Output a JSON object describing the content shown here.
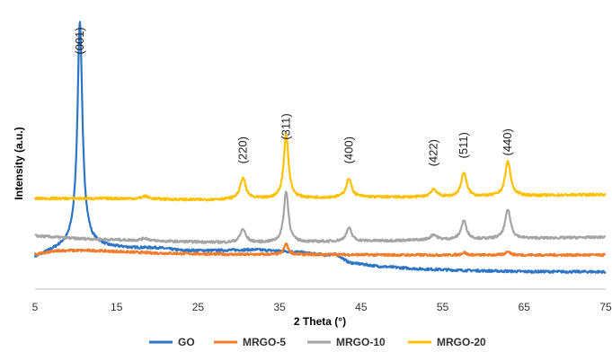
{
  "chart_data": {
    "type": "line",
    "title": "",
    "xlabel": "2 Theta (°)",
    "ylabel": "Intensity (a.u.)",
    "xlim": [
      5,
      75
    ],
    "ylim": [
      0,
      100
    ],
    "x_ticks": [
      "5",
      "15",
      "25",
      "35",
      "45",
      "55",
      "65",
      "75"
    ],
    "y_ticks_shown": false,
    "legend_position": "bottom",
    "peak_labels": [
      {
        "text": "(001)",
        "x": 10.5,
        "y": 88
      },
      {
        "text": "(220)",
        "x": 30.5,
        "y": 47
      },
      {
        "text": "(311)",
        "x": 35.8,
        "y": 56
      },
      {
        "text": "(400)",
        "x": 43.5,
        "y": 47
      },
      {
        "text": "(422)",
        "x": 53.9,
        "y": 46
      },
      {
        "text": "(511)",
        "x": 57.6,
        "y": 49
      },
      {
        "text": "(440)",
        "x": 63.0,
        "y": 50
      }
    ],
    "series": [
      {
        "name": "GO",
        "color": "#2E75C6",
        "baseline_points": [
          [
            5,
            12
          ],
          [
            7,
            14.5
          ],
          [
            9,
            17
          ],
          [
            10,
            20
          ],
          [
            11,
            21
          ],
          [
            12,
            17.5
          ],
          [
            14,
            16
          ],
          [
            17,
            15.5
          ],
          [
            20,
            15.5
          ],
          [
            23,
            14.5
          ],
          [
            27,
            14.5
          ],
          [
            32,
            14.8
          ],
          [
            37,
            14
          ],
          [
            40.5,
            12.8
          ],
          [
            42,
            13
          ],
          [
            43.5,
            10
          ],
          [
            47,
            8.6
          ],
          [
            52,
            7.6
          ],
          [
            58,
            7
          ],
          [
            65,
            6.6
          ],
          [
            75,
            6.5
          ]
        ],
        "peaks": [
          [
            10.5,
            80,
            0.35
          ]
        ]
      },
      {
        "name": "MRGO-5",
        "color": "#F07C2C",
        "baseline_points": [
          [
            5,
            13
          ],
          [
            8,
            14.5
          ],
          [
            12,
            14.5
          ],
          [
            20,
            13.5
          ],
          [
            30,
            13
          ],
          [
            40,
            13
          ],
          [
            50,
            12.8
          ],
          [
            60,
            12.8
          ],
          [
            75,
            12.8
          ]
        ],
        "peaks": [
          [
            35.8,
            4,
            0.3
          ],
          [
            57.6,
            1,
            0.3
          ],
          [
            63.0,
            1.5,
            0.3
          ]
        ]
      },
      {
        "name": "MRGO-10",
        "color": "#A5A5A5",
        "baseline_points": [
          [
            5,
            20
          ],
          [
            10,
            19
          ],
          [
            15,
            18.5
          ],
          [
            20,
            18
          ],
          [
            28,
            17.5
          ],
          [
            35,
            17.5
          ],
          [
            45,
            18
          ],
          [
            55,
            18.5
          ],
          [
            65,
            19
          ],
          [
            75,
            19.5
          ]
        ],
        "peaks": [
          [
            18.5,
            1,
            0.5
          ],
          [
            30.5,
            5,
            0.4
          ],
          [
            35.8,
            19,
            0.35
          ],
          [
            43.5,
            5,
            0.4
          ],
          [
            53.9,
            2,
            0.45
          ],
          [
            57.6,
            7,
            0.4
          ],
          [
            63.0,
            11,
            0.4
          ]
        ]
      },
      {
        "name": "MRGO-20",
        "color": "#FFC000",
        "baseline_points": [
          [
            5,
            34
          ],
          [
            15,
            34
          ],
          [
            25,
            33.5
          ],
          [
            35,
            34
          ],
          [
            45,
            34.5
          ],
          [
            55,
            34.5
          ],
          [
            65,
            35
          ],
          [
            75,
            35.5
          ]
        ],
        "peaks": [
          [
            18.5,
            1,
            0.5
          ],
          [
            30.5,
            8,
            0.4
          ],
          [
            35.8,
            24,
            0.35
          ],
          [
            43.5,
            7,
            0.4
          ],
          [
            53.9,
            3,
            0.45
          ],
          [
            57.6,
            9,
            0.4
          ],
          [
            63.0,
            13,
            0.4
          ]
        ]
      }
    ]
  }
}
